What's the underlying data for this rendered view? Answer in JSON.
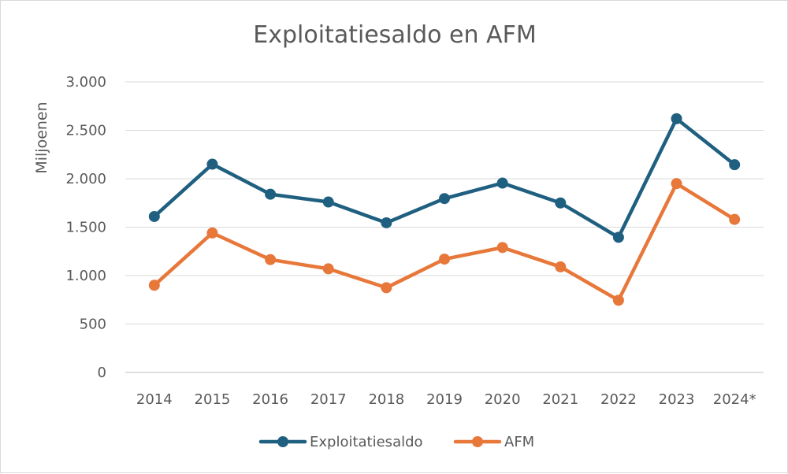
{
  "chart_data": {
    "type": "line",
    "title": "Exploitatiesaldo en AFM",
    "xlabel": "",
    "ylabel": "Miljoenen",
    "categories": [
      "2014",
      "2015",
      "2016",
      "2017",
      "2018",
      "2019",
      "2020",
      "2021",
      "2022",
      "2023",
      "2024*"
    ],
    "ylim": [
      0,
      3000
    ],
    "yticks": [
      0,
      500,
      1000,
      1500,
      2000,
      2500,
      3000
    ],
    "ytick_labels": [
      "0",
      "500",
      "1.000",
      "1.500",
      "2.000",
      "2.500",
      "3.000"
    ],
    "grid": true,
    "legend": "bottom",
    "series": [
      {
        "name": "Exploitatiesaldo",
        "color": "#1f5f80",
        "values": [
          1610,
          2150,
          1840,
          1760,
          1545,
          1795,
          1955,
          1750,
          1395,
          2620,
          2145
        ]
      },
      {
        "name": "AFM",
        "color": "#e8773a",
        "values": [
          900,
          1440,
          1165,
          1070,
          875,
          1170,
          1290,
          1090,
          745,
          1950,
          1580
        ]
      }
    ]
  }
}
